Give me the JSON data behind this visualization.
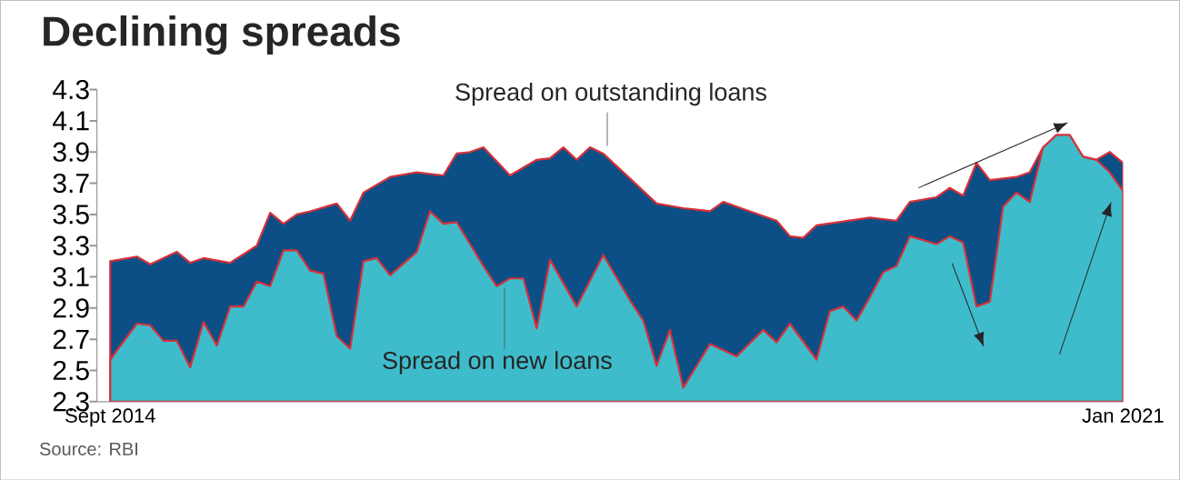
{
  "chart_data": {
    "type": "area",
    "title": "Declining spreads",
    "annotations": [
      "Source: RBI"
    ],
    "xlim": [
      "2014-08",
      "2021-01"
    ],
    "xticks": [
      {
        "value": "2014-09",
        "label": "Sept 2014"
      },
      {
        "value": "2021-01",
        "label": "Jan 2021"
      }
    ],
    "ylim": [
      2.3,
      4.3
    ],
    "yticks": [
      2.3,
      2.5,
      2.7,
      2.9,
      3.1,
      3.3,
      3.5,
      3.7,
      3.9,
      4.1,
      4.3
    ],
    "series": [
      {
        "name": "Spread on outstanding loans",
        "color": "#0b4f86",
        "x": [
          "2014-09",
          "2014-11",
          "2014-12",
          "2015-02",
          "2015-03",
          "2015-04",
          "2015-06",
          "2015-08",
          "2015-09",
          "2015-10",
          "2015-11",
          "2015-12",
          "2016-02",
          "2016-03",
          "2016-04",
          "2016-06",
          "2016-08",
          "2016-10",
          "2016-11",
          "2016-12",
          "2017-01",
          "2017-03",
          "2017-05",
          "2017-06",
          "2017-07",
          "2017-08",
          "2017-09",
          "2017-10",
          "2017-12",
          "2018-02",
          "2018-04",
          "2018-06",
          "2018-07",
          "2018-09",
          "2018-11",
          "2018-12",
          "2019-01",
          "2019-02",
          "2019-06",
          "2019-08",
          "2019-09",
          "2019-11",
          "2019-12",
          "2020-01",
          "2020-02",
          "2020-03",
          "2020-05",
          "2020-06",
          "2020-07",
          "2020-08",
          "2020-09",
          "2020-11",
          "2020-12",
          "2021-01"
        ],
        "values": [
          3.2,
          3.23,
          3.18,
          3.26,
          3.19,
          3.22,
          3.19,
          3.3,
          3.51,
          3.44,
          3.5,
          3.52,
          3.57,
          3.46,
          3.64,
          3.74,
          3.77,
          3.75,
          3.89,
          3.9,
          3.93,
          3.75,
          3.85,
          3.86,
          3.93,
          3.85,
          3.93,
          3.89,
          3.73,
          3.57,
          3.54,
          3.52,
          3.58,
          3.52,
          3.46,
          3.36,
          3.35,
          3.43,
          3.48,
          3.46,
          3.58,
          3.61,
          3.67,
          3.62,
          3.83,
          3.72,
          3.74,
          3.77,
          3.93,
          null,
          null,
          3.85,
          3.9,
          3.83
        ]
      },
      {
        "name": "Spread on new loans",
        "color": "#3fbccb",
        "x": [
          "2014-09",
          "2014-11",
          "2014-12",
          "2015-01",
          "2015-02",
          "2015-03",
          "2015-04",
          "2015-05",
          "2015-06",
          "2015-07",
          "2015-08",
          "2015-09",
          "2015-10",
          "2015-11",
          "2015-12",
          "2016-01",
          "2016-02",
          "2016-03",
          "2016-04",
          "2016-05",
          "2016-06",
          "2016-08",
          "2016-09",
          "2016-10",
          "2016-11",
          "2017-01",
          "2017-02",
          "2017-03",
          "2017-04",
          "2017-05",
          "2017-06",
          "2017-08",
          "2017-10",
          "2017-12",
          "2018-01",
          "2018-02",
          "2018-03",
          "2018-04",
          "2018-06",
          "2018-08",
          "2018-10",
          "2018-11",
          "2018-12",
          "2019-02",
          "2019-03",
          "2019-04",
          "2019-05",
          "2019-06",
          "2019-07",
          "2019-08",
          "2019-09",
          "2019-11",
          "2019-12",
          "2020-01",
          "2020-02",
          "2020-03",
          "2020-04",
          "2020-05",
          "2020-06",
          "2020-07",
          "2020-08",
          "2020-09",
          "2020-10",
          "2020-11",
          "2020-12",
          "2021-01"
        ],
        "values": [
          2.57,
          2.8,
          2.79,
          2.69,
          2.69,
          2.52,
          2.81,
          2.66,
          2.91,
          2.91,
          3.07,
          3.04,
          3.27,
          3.27,
          3.14,
          3.12,
          2.72,
          2.64,
          3.2,
          3.22,
          3.11,
          3.26,
          3.52,
          3.44,
          3.45,
          3.17,
          3.04,
          3.09,
          3.09,
          2.77,
          3.21,
          2.91,
          3.24,
          2.95,
          2.82,
          2.53,
          2.76,
          2.39,
          2.67,
          2.59,
          2.76,
          2.68,
          2.8,
          2.57,
          2.88,
          2.91,
          2.82,
          2.97,
          3.13,
          3.17,
          3.36,
          3.31,
          3.36,
          3.32,
          2.91,
          2.94,
          3.55,
          3.64,
          3.58,
          3.93,
          4.01,
          4.01,
          3.87,
          3.85,
          3.77,
          3.65
        ]
      }
    ]
  }
}
